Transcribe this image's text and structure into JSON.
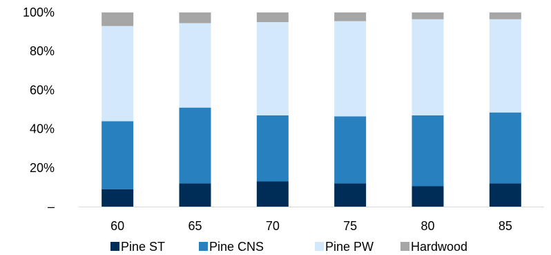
{
  "chart_data": {
    "type": "bar",
    "stacked": true,
    "normalized": true,
    "categories": [
      "60",
      "65",
      "70",
      "75",
      "80",
      "85"
    ],
    "series": [
      {
        "name": "Pine ST",
        "color": "#002D57",
        "values": [
          9,
          12,
          13,
          12,
          10.5,
          12
        ]
      },
      {
        "name": "Pine CNS",
        "color": "#2880BE",
        "values": [
          35,
          39,
          34,
          34.5,
          36.5,
          36.5
        ]
      },
      {
        "name": "Pine PW",
        "color": "#D4E8FB",
        "values": [
          49,
          43.5,
          48,
          49,
          49.5,
          48
        ]
      },
      {
        "name": "Hardwood",
        "color": "#A6A6A6",
        "values": [
          7,
          5.5,
          5,
          4.5,
          3.5,
          3.5
        ]
      }
    ],
    "y_ticks": [
      "–",
      "20%",
      "40%",
      "60%",
      "80%",
      "100%"
    ],
    "ylim": [
      0,
      100
    ],
    "legend_position": "bottom",
    "grid": false
  }
}
